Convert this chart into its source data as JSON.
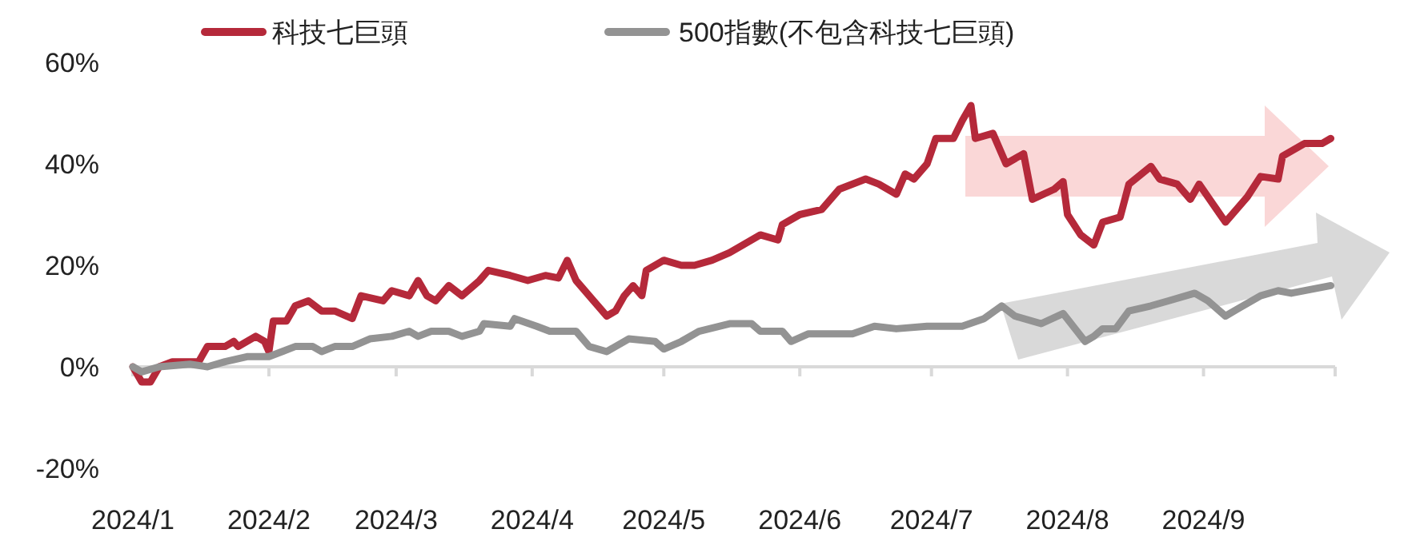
{
  "chart_data": {
    "type": "line",
    "legend": "top",
    "line_style": "solid",
    "marker": "none",
    "xlim": [
      "2024-01-01",
      "2024-10-01"
    ],
    "xticks": [
      {
        "value": "2024-01-01",
        "label": "2024/1"
      },
      {
        "value": "2024-02-01",
        "label": "2024/2"
      },
      {
        "value": "2024-03-01",
        "label": "2024/3"
      },
      {
        "value": "2024-04-01",
        "label": "2024/4"
      },
      {
        "value": "2024-05-01",
        "label": "2024/5"
      },
      {
        "value": "2024-06-01",
        "label": "2024/6"
      },
      {
        "value": "2024-07-01",
        "label": "2024/7"
      },
      {
        "value": "2024-08-01",
        "label": "2024/8"
      },
      {
        "value": "2024-09-01",
        "label": "2024/9"
      },
      {
        "value": "2024-10-01",
        "label": null
      }
    ],
    "ylim": [
      -20,
      60
    ],
    "yticks": [
      {
        "value": -20,
        "label": "-20%"
      },
      {
        "value": 0,
        "label": "0%"
      },
      {
        "value": 20,
        "label": "20%"
      },
      {
        "value": 40,
        "label": "40%"
      },
      {
        "value": 60,
        "label": "60%"
      }
    ],
    "series": [
      {
        "name": "科技七巨頭",
        "color": "#b5293a",
        "x": [
          "2024-01-01",
          "2024-01-03",
          "2024-01-05",
          "2024-01-07",
          "2024-01-10",
          "2024-01-16",
          "2024-01-18",
          "2024-01-22",
          "2024-01-24",
          "2024-01-25",
          "2024-01-29",
          "2024-01-31",
          "2024-02-01",
          "2024-02-02",
          "2024-02-05",
          "2024-02-07",
          "2024-02-10",
          "2024-02-13",
          "2024-02-16",
          "2024-02-20",
          "2024-02-22",
          "2024-02-27",
          "2024-02-29",
          "2024-03-04",
          "2024-03-06",
          "2024-03-08",
          "2024-03-10",
          "2024-03-13",
          "2024-03-16",
          "2024-03-20",
          "2024-03-22",
          "2024-03-27",
          "2024-03-31",
          "2024-04-04",
          "2024-04-07",
          "2024-04-09",
          "2024-04-11",
          "2024-04-15",
          "2024-04-18",
          "2024-04-20",
          "2024-04-22",
          "2024-04-24",
          "2024-04-26",
          "2024-04-27",
          "2024-05-01",
          "2024-05-05",
          "2024-05-08",
          "2024-05-12",
          "2024-05-16",
          "2024-05-19",
          "2024-05-23",
          "2024-05-27",
          "2024-05-28",
          "2024-06-01",
          "2024-06-06",
          "2024-06-10",
          "2024-06-16",
          "2024-06-19",
          "2024-06-23",
          "2024-06-25",
          "2024-06-27",
          "2024-06-30",
          "2024-07-02",
          "2024-07-06",
          "2024-07-08",
          "2024-07-10",
          "2024-07-11",
          "2024-07-15",
          "2024-07-18",
          "2024-07-22",
          "2024-07-24",
          "2024-07-29",
          "2024-07-31",
          "2024-08-01",
          "2024-08-04",
          "2024-08-07",
          "2024-08-09",
          "2024-08-13",
          "2024-08-15",
          "2024-08-20",
          "2024-08-22",
          "2024-08-26",
          "2024-08-29",
          "2024-08-31",
          "2024-09-04",
          "2024-09-06",
          "2024-09-11",
          "2024-09-14",
          "2024-09-18",
          "2024-09-19",
          "2024-09-24",
          "2024-09-28",
          "2024-09-30"
        ],
        "values": [
          0,
          -3,
          -3,
          0,
          1,
          1,
          4,
          4,
          5,
          4,
          6,
          5,
          3,
          9,
          9,
          12,
          13,
          11,
          11,
          9.5,
          14,
          13,
          15,
          14,
          17,
          14,
          13,
          16,
          14,
          17,
          19,
          18,
          17,
          18,
          17.5,
          21,
          17,
          13,
          10,
          11,
          14,
          16,
          14,
          19,
          21,
          20,
          20,
          21,
          22.5,
          24,
          26,
          25,
          28,
          30,
          31,
          35,
          37,
          36,
          34,
          38,
          37,
          40,
          45,
          45,
          48.5,
          51.5,
          45,
          46,
          40,
          42,
          33,
          35,
          36.5,
          30,
          26,
          24,
          28.5,
          29.5,
          36,
          39.5,
          37,
          36,
          33,
          36,
          31,
          28.5,
          33.5,
          37.5,
          37,
          41.5,
          44,
          44,
          45
        ]
      },
      {
        "name": "500指數(不包含科技七巨頭)",
        "color": "#939393",
        "x": [
          "2024-01-01",
          "2024-01-03",
          "2024-01-07",
          "2024-01-14",
          "2024-01-18",
          "2024-01-22",
          "2024-01-27",
          "2024-02-01",
          "2024-02-04",
          "2024-02-07",
          "2024-02-11",
          "2024-02-13",
          "2024-02-16",
          "2024-02-20",
          "2024-02-24",
          "2024-02-29",
          "2024-03-04",
          "2024-03-06",
          "2024-03-09",
          "2024-03-13",
          "2024-03-16",
          "2024-03-20",
          "2024-03-21",
          "2024-03-27",
          "2024-03-28",
          "2024-04-02",
          "2024-04-05",
          "2024-04-11",
          "2024-04-14",
          "2024-04-18",
          "2024-04-23",
          "2024-04-29",
          "2024-05-01",
          "2024-05-05",
          "2024-05-09",
          "2024-05-16",
          "2024-05-21",
          "2024-05-23",
          "2024-05-28",
          "2024-05-30",
          "2024-06-03",
          "2024-06-13",
          "2024-06-18",
          "2024-06-23",
          "2024-06-30",
          "2024-07-08",
          "2024-07-13",
          "2024-07-17",
          "2024-07-20",
          "2024-07-26",
          "2024-07-31",
          "2024-08-05",
          "2024-08-07",
          "2024-08-09",
          "2024-08-12",
          "2024-08-15",
          "2024-08-20",
          "2024-08-24",
          "2024-08-30",
          "2024-09-02",
          "2024-09-06",
          "2024-09-09",
          "2024-09-14",
          "2024-09-18",
          "2024-09-21",
          "2024-09-30"
        ],
        "values": [
          0,
          -1,
          0,
          0.5,
          0,
          1,
          2,
          2,
          3,
          4,
          4,
          3,
          4,
          4,
          5.5,
          6,
          7,
          6,
          7,
          7,
          6,
          7,
          8.5,
          8,
          9.5,
          8,
          7,
          7,
          4,
          3,
          5.5,
          5,
          3.5,
          5,
          7,
          8.5,
          8.5,
          7,
          7,
          5,
          6.5,
          6.5,
          8,
          7.5,
          8,
          8,
          9.5,
          12,
          10,
          8.5,
          10.5,
          5,
          6,
          7.5,
          7.5,
          11,
          12,
          13,
          14.5,
          13,
          10,
          11.5,
          14,
          15,
          14.5,
          16
        ]
      }
    ]
  }
}
